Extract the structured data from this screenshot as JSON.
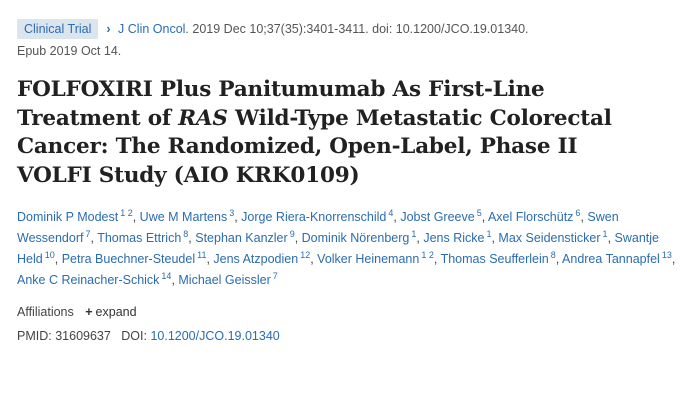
{
  "header": {
    "badge": "Clinical Trial",
    "chevron": "›",
    "journal": "J Clin Oncol.",
    "citation": "2019 Dec 10;37(35):3401-3411. doi: 10.1200/JCO.19.01340.",
    "epub": "Epub 2019 Oct 14."
  },
  "article": {
    "title_part1": "FOLFOXIRI Plus Panitumumab As First-Line Treatment of ",
    "title_italic": "RAS",
    "title_part2": " Wild-Type Metastatic Colorectal Cancer: The Randomized, Open-Label, Phase II VOLFI Study (AIO KRK0109)"
  },
  "authors": [
    {
      "name": "Dominik P Modest",
      "sup": "1 2"
    },
    {
      "name": "Uwe M Martens",
      "sup": "3"
    },
    {
      "name": "Jorge Riera-Knorrenschild",
      "sup": "4"
    },
    {
      "name": "Jobst Greeve",
      "sup": "5"
    },
    {
      "name": "Axel Florschütz",
      "sup": "6"
    },
    {
      "name": "Swen Wessendorf",
      "sup": "7"
    },
    {
      "name": "Thomas Ettrich",
      "sup": "8"
    },
    {
      "name": "Stephan Kanzler",
      "sup": "9"
    },
    {
      "name": "Dominik Nörenberg",
      "sup": "1"
    },
    {
      "name": "Jens Ricke",
      "sup": "1"
    },
    {
      "name": "Max Seidensticker",
      "sup": "1"
    },
    {
      "name": "Swantje Held",
      "sup": "10"
    },
    {
      "name": "Petra Buechner-Steudel",
      "sup": "11"
    },
    {
      "name": "Jens Atzpodien",
      "sup": "12"
    },
    {
      "name": "Volker Heinemann",
      "sup": "1 2"
    },
    {
      "name": "Thomas Seufferlein",
      "sup": "8"
    },
    {
      "name": "Andrea Tannapfel",
      "sup": "13"
    },
    {
      "name": "Anke C Reinacher-Schick",
      "sup": "14"
    },
    {
      "name": "Michael Geissler",
      "sup": "7"
    }
  ],
  "affiliations": {
    "label": "Affiliations",
    "expand_icon": "plus-icon",
    "expand_label": "expand"
  },
  "identifiers": {
    "pmid_label": "PMID:",
    "pmid": "31609637",
    "doi_label": "DOI:",
    "doi": "10.1200/JCO.19.01340"
  }
}
